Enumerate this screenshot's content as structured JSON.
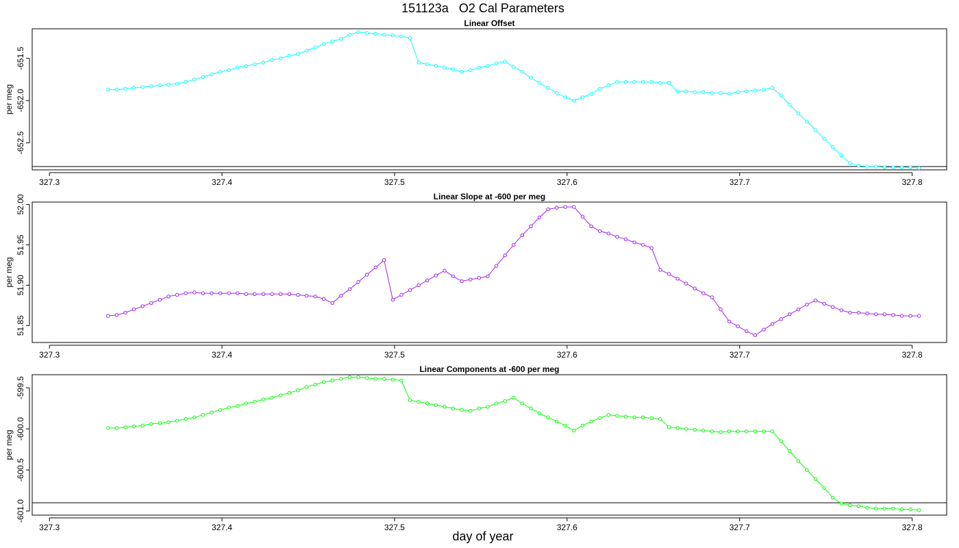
{
  "page": {
    "title": "151123a   O2 Cal Parameters",
    "xlabel": "day of year"
  },
  "chart_data": [
    {
      "type": "line",
      "title": "Linear Offset",
      "ylabel": "per meg",
      "color": "#00ffff",
      "xlim": [
        327.29,
        327.82
      ],
      "ylim": [
        -652.82,
        -651.15
      ],
      "xticks": [
        327.3,
        327.4,
        327.5,
        327.6,
        327.7,
        327.8
      ],
      "xtick_labels": [
        "327.3",
        "327.4",
        "327.5",
        "327.6",
        "327.7",
        "327.8"
      ],
      "yticks": [
        -651.5,
        -652.0,
        -652.5
      ],
      "ytick_labels": [
        "-651.5",
        "-652.0",
        "-652.5"
      ],
      "hline": -652.78,
      "series": [
        {
          "x": [
            327.334,
            327.339,
            327.344,
            327.349,
            327.354,
            327.359,
            327.364,
            327.369,
            327.374,
            327.379,
            327.384,
            327.389,
            327.394,
            327.399,
            327.404,
            327.409,
            327.414,
            327.419,
            327.424,
            327.429,
            327.434,
            327.439,
            327.444,
            327.449,
            327.454,
            327.459,
            327.464,
            327.469,
            327.474,
            327.479,
            327.484,
            327.489,
            327.494,
            327.499,
            327.504,
            327.509,
            327.514,
            327.519,
            327.524,
            327.529,
            327.534,
            327.539,
            327.544,
            327.549,
            327.554,
            327.559,
            327.564,
            327.569,
            327.574,
            327.579,
            327.584,
            327.589,
            327.594,
            327.599,
            327.604,
            327.609,
            327.614,
            327.619,
            327.624,
            327.629,
            327.634,
            327.639,
            327.644,
            327.649,
            327.654,
            327.659,
            327.664,
            327.669,
            327.674,
            327.679,
            327.684,
            327.689,
            327.694,
            327.699,
            327.704,
            327.709,
            327.714,
            327.719,
            327.724,
            327.729,
            327.734,
            327.739,
            327.744,
            327.749,
            327.754,
            327.759,
            327.764,
            327.769,
            327.774,
            327.779,
            327.784,
            327.789,
            327.794,
            327.799,
            327.804
          ],
          "y": [
            -651.87,
            -651.87,
            -651.86,
            -651.85,
            -651.84,
            -651.83,
            -651.82,
            -651.81,
            -651.8,
            -651.78,
            -651.75,
            -651.72,
            -651.69,
            -651.66,
            -651.64,
            -651.61,
            -651.59,
            -651.57,
            -651.55,
            -651.52,
            -651.5,
            -651.47,
            -651.45,
            -651.41,
            -651.37,
            -651.33,
            -651.3,
            -651.27,
            -651.22,
            -651.19,
            -651.2,
            -651.21,
            -651.22,
            -651.23,
            -651.24,
            -651.26,
            -651.55,
            -651.57,
            -651.59,
            -651.61,
            -651.63,
            -651.66,
            -651.64,
            -651.61,
            -651.59,
            -651.56,
            -651.54,
            -651.6,
            -651.66,
            -651.73,
            -651.79,
            -651.85,
            -651.91,
            -651.96,
            -652.0,
            -651.96,
            -651.92,
            -651.86,
            -651.82,
            -651.78,
            -651.78,
            -651.78,
            -651.78,
            -651.78,
            -651.79,
            -651.79,
            -651.89,
            -651.89,
            -651.9,
            -651.9,
            -651.91,
            -651.91,
            -651.92,
            -651.9,
            -651.89,
            -651.88,
            -651.87,
            -651.85,
            -651.94,
            -652.05,
            -652.15,
            -652.25,
            -652.35,
            -652.45,
            -652.55,
            -652.65,
            -652.74,
            -652.77,
            -652.78,
            -652.78,
            -652.79,
            -652.79,
            -652.79,
            -652.79,
            -652.8
          ]
        }
      ]
    },
    {
      "type": "line",
      "title": "Linear Slope at -600 per meg",
      "ylabel": "per meg",
      "color": "#a020f0",
      "xlim": [
        327.29,
        327.82
      ],
      "ylim": [
        51.829,
        52.003
      ],
      "xticks": [
        327.3,
        327.4,
        327.5,
        327.6,
        327.7,
        327.8
      ],
      "xtick_labels": [
        "327.3",
        "327.4",
        "327.5",
        "327.6",
        "327.7",
        "327.8"
      ],
      "yticks": [
        51.85,
        51.9,
        51.95,
        52.0
      ],
      "ytick_labels": [
        "51.85",
        "51.90",
        "51.95",
        "52.00"
      ],
      "series": [
        {
          "x": [
            327.334,
            327.339,
            327.344,
            327.349,
            327.354,
            327.359,
            327.364,
            327.369,
            327.374,
            327.379,
            327.384,
            327.389,
            327.394,
            327.399,
            327.404,
            327.409,
            327.414,
            327.419,
            327.424,
            327.429,
            327.434,
            327.439,
            327.444,
            327.449,
            327.454,
            327.459,
            327.464,
            327.469,
            327.474,
            327.479,
            327.484,
            327.489,
            327.494,
            327.499,
            327.504,
            327.509,
            327.514,
            327.519,
            327.524,
            327.529,
            327.534,
            327.539,
            327.544,
            327.549,
            327.554,
            327.559,
            327.564,
            327.569,
            327.574,
            327.579,
            327.584,
            327.589,
            327.594,
            327.599,
            327.604,
            327.609,
            327.614,
            327.619,
            327.624,
            327.629,
            327.634,
            327.639,
            327.644,
            327.649,
            327.654,
            327.659,
            327.664,
            327.669,
            327.674,
            327.679,
            327.684,
            327.689,
            327.694,
            327.699,
            327.704,
            327.709,
            327.714,
            327.719,
            327.724,
            327.729,
            327.734,
            327.739,
            327.744,
            327.749,
            327.754,
            327.759,
            327.764,
            327.769,
            327.774,
            327.779,
            327.784,
            327.789,
            327.794,
            327.799,
            327.804
          ],
          "y": [
            51.862,
            51.863,
            51.866,
            51.87,
            51.874,
            51.878,
            51.882,
            51.886,
            51.888,
            51.89,
            51.891,
            51.89,
            51.89,
            51.89,
            51.89,
            51.89,
            51.889,
            51.889,
            51.889,
            51.889,
            51.889,
            51.889,
            51.888,
            51.887,
            51.886,
            51.883,
            51.878,
            51.887,
            51.895,
            51.904,
            51.913,
            51.922,
            51.931,
            51.882,
            51.888,
            51.894,
            51.9,
            51.906,
            51.912,
            51.918,
            51.911,
            51.905,
            51.907,
            51.909,
            51.911,
            51.924,
            51.937,
            51.95,
            51.962,
            51.973,
            51.984,
            51.994,
            51.996,
            51.997,
            51.997,
            51.985,
            51.973,
            51.967,
            51.964,
            51.96,
            51.957,
            51.953,
            51.95,
            51.946,
            51.919,
            51.914,
            51.908,
            51.902,
            51.896,
            51.89,
            51.885,
            51.87,
            51.855,
            51.849,
            51.843,
            51.838,
            51.845,
            51.852,
            51.858,
            51.864,
            51.87,
            51.876,
            51.881,
            51.877,
            51.873,
            51.869,
            51.866,
            51.866,
            51.865,
            51.864,
            51.864,
            51.863,
            51.862,
            51.862,
            51.862
          ]
        }
      ]
    },
    {
      "type": "line",
      "title": "Linear Components at -600 per meg",
      "ylabel": "per meg",
      "color": "#00ff00",
      "xlim": [
        327.29,
        327.82
      ],
      "ylim": [
        -601.05,
        -599.34
      ],
      "xticks": [
        327.3,
        327.4,
        327.5,
        327.6,
        327.7,
        327.8
      ],
      "xtick_labels": [
        "327.3",
        "327.4",
        "327.5",
        "327.6",
        "327.7",
        "327.8"
      ],
      "yticks": [
        -599.5,
        -600.0,
        -600.5,
        -601.0
      ],
      "ytick_labels": [
        "-599.5",
        "-600.0",
        "-600.5",
        "-601.0"
      ],
      "hline": -600.9,
      "series": [
        {
          "x": [
            327.334,
            327.339,
            327.344,
            327.349,
            327.354,
            327.359,
            327.364,
            327.369,
            327.374,
            327.379,
            327.384,
            327.389,
            327.394,
            327.399,
            327.404,
            327.409,
            327.414,
            327.419,
            327.424,
            327.429,
            327.434,
            327.439,
            327.444,
            327.449,
            327.454,
            327.459,
            327.464,
            327.469,
            327.474,
            327.479,
            327.484,
            327.489,
            327.494,
            327.499,
            327.504,
            327.509,
            327.514,
            327.519,
            327.524,
            327.529,
            327.534,
            327.539,
            327.544,
            327.549,
            327.554,
            327.559,
            327.564,
            327.569,
            327.574,
            327.579,
            327.584,
            327.589,
            327.594,
            327.599,
            327.604,
            327.609,
            327.614,
            327.619,
            327.624,
            327.629,
            327.634,
            327.639,
            327.644,
            327.649,
            327.654,
            327.659,
            327.664,
            327.669,
            327.674,
            327.679,
            327.684,
            327.689,
            327.694,
            327.699,
            327.704,
            327.709,
            327.714,
            327.719,
            327.724,
            327.729,
            327.734,
            327.739,
            327.744,
            327.749,
            327.754,
            327.759,
            327.764,
            327.769,
            327.774,
            327.779,
            327.784,
            327.789,
            327.794,
            327.799,
            327.804
          ],
          "y": [
            -599.99,
            -599.99,
            -599.98,
            -599.97,
            -599.96,
            -599.94,
            -599.93,
            -599.92,
            -599.9,
            -599.88,
            -599.86,
            -599.83,
            -599.8,
            -599.77,
            -599.74,
            -599.72,
            -599.69,
            -599.67,
            -599.64,
            -599.62,
            -599.59,
            -599.56,
            -599.53,
            -599.49,
            -599.46,
            -599.43,
            -599.41,
            -599.39,
            -599.37,
            -599.37,
            -599.38,
            -599.39,
            -599.39,
            -599.4,
            -599.41,
            -599.65,
            -599.67,
            -599.69,
            -599.71,
            -599.73,
            -599.75,
            -599.77,
            -599.78,
            -599.75,
            -599.73,
            -599.69,
            -599.66,
            -599.62,
            -599.69,
            -599.75,
            -599.81,
            -599.86,
            -599.91,
            -599.96,
            -600.02,
            -599.96,
            -599.91,
            -599.87,
            -599.83,
            -599.84,
            -599.85,
            -599.86,
            -599.86,
            -599.87,
            -599.88,
            -599.98,
            -599.99,
            -600.0,
            -600.01,
            -600.02,
            -600.03,
            -600.04,
            -600.03,
            -600.03,
            -600.03,
            -600.03,
            -600.03,
            -600.03,
            -600.15,
            -600.27,
            -600.39,
            -600.5,
            -600.61,
            -600.72,
            -600.84,
            -600.91,
            -600.93,
            -600.94,
            -600.96,
            -600.97,
            -600.97,
            -600.97,
            -600.98,
            -600.98,
            -600.99
          ]
        }
      ]
    }
  ]
}
